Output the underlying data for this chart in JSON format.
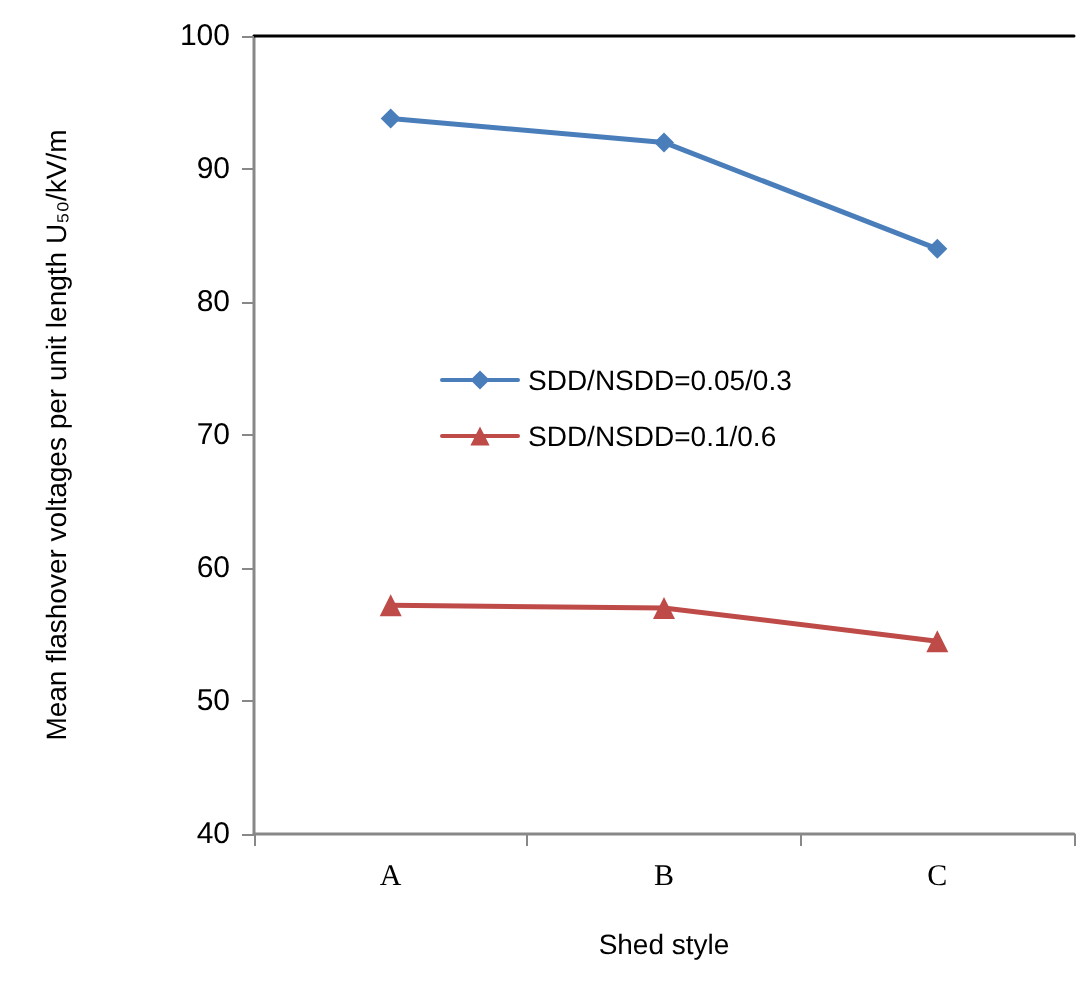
{
  "chart_data": {
    "type": "line",
    "xlabel": "Shed style",
    "ylabel": "Mean flashover voltages per unit length U₅₀/kV/m",
    "categories": [
      "A",
      "B",
      "C"
    ],
    "series": [
      {
        "name": "SDD/NSDD=0.05/0.3",
        "color": "#4a7ebb",
        "marker": "diamond",
        "values": [
          93.8,
          92.0,
          84.0
        ]
      },
      {
        "name": "SDD/NSDD=0.1/0.6",
        "color": "#be4b48",
        "marker": "triangle",
        "values": [
          57.2,
          57.0,
          54.5
        ]
      }
    ],
    "ylim": [
      40,
      100
    ],
    "yticks": [
      40,
      50,
      60,
      70,
      80,
      90,
      100
    ],
    "grid": false,
    "legend": "center",
    "line_style": "solid"
  }
}
